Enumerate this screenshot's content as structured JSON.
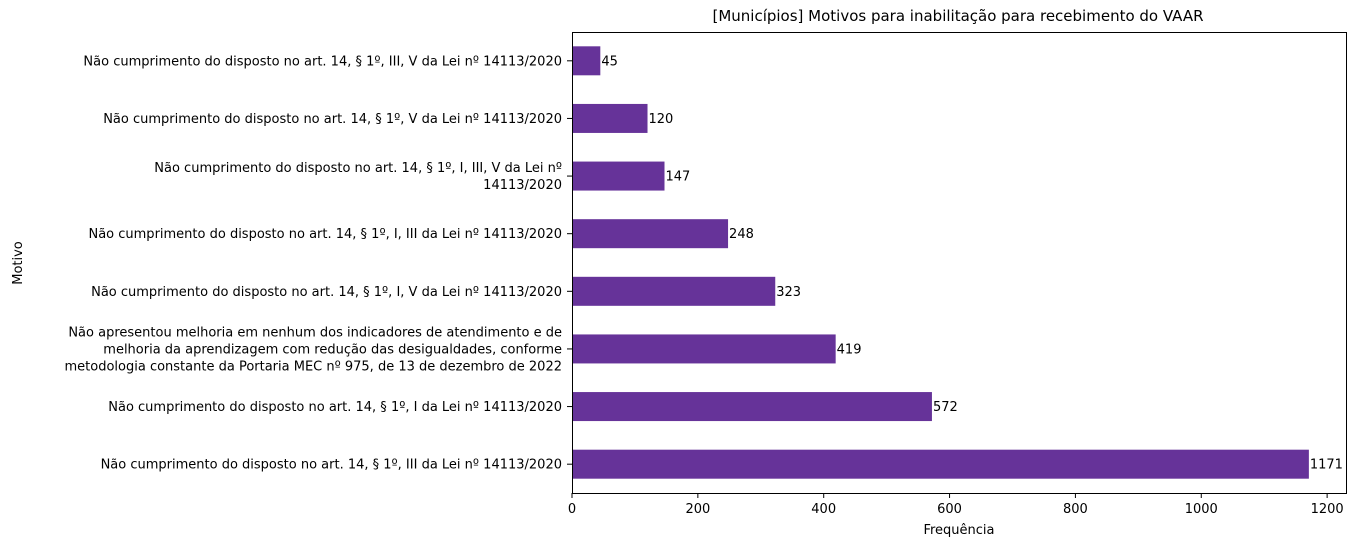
{
  "chart_data": {
    "type": "bar",
    "orientation": "horizontal",
    "title": "[Municípios] Motivos para inabilitação para recebimento do VAAR",
    "xlabel": "Frequência",
    "ylabel": "Motivo",
    "xlim": [
      0,
      1230
    ],
    "xticks": [
      0,
      200,
      400,
      600,
      800,
      1000,
      1200
    ],
    "grid": false,
    "legend": "none",
    "bar_color": "#663399",
    "categories": [
      [
        "Não cumprimento do disposto no art. 14, § 1º, III, V da Lei nº 14113/2020"
      ],
      [
        "Não cumprimento do disposto no art. 14, § 1º, V da Lei nº 14113/2020"
      ],
      [
        "Não cumprimento do disposto no art. 14, § 1º, I, III, V da Lei nº",
        "14113/2020"
      ],
      [
        "Não cumprimento do disposto no art. 14, § 1º, I, III da Lei nº 14113/2020"
      ],
      [
        "Não cumprimento do disposto no art. 14, § 1º, I, V da Lei nº 14113/2020"
      ],
      [
        "Não apresentou melhoria em nenhum dos indicadores de atendimento e de",
        "melhoria da aprendizagem com redução das desigualdades, conforme",
        "metodologia constante da Portaria MEC nº 975, de 13 de dezembro de 2022"
      ],
      [
        "Não cumprimento do disposto no art. 14, § 1º, I da Lei nº 14113/2020"
      ],
      [
        "Não cumprimento do disposto no art. 14, § 1º, III da Lei nº 14113/2020"
      ]
    ],
    "values": [
      45,
      120,
      147,
      248,
      323,
      419,
      572,
      1171
    ]
  }
}
